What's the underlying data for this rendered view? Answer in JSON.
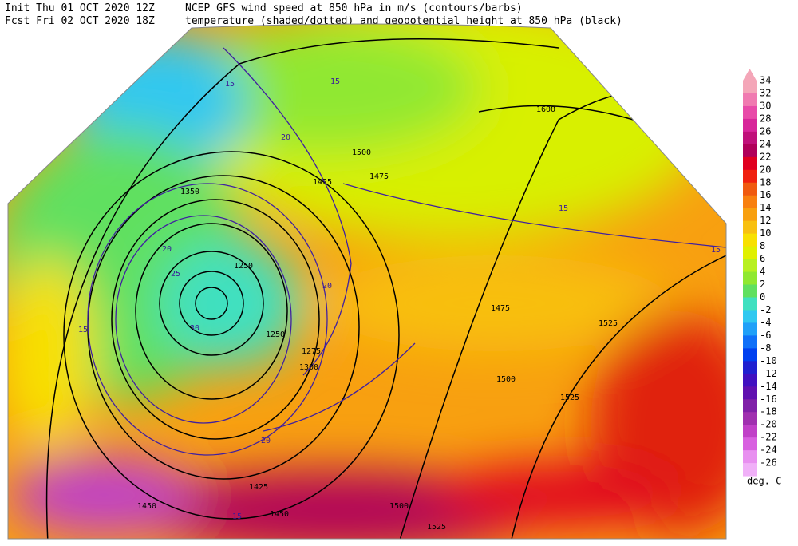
{
  "header": {
    "init": "Init  Thu 01 OCT 2020 12Z",
    "fcst": "Fcst Fri 02 OCT 2020 18Z",
    "line1": "NCEP GFS wind speed at 850 hPa in m/s (contours/barbs)",
    "line2": "temperature (shaded/dotted) and geopotential height at 850 hPa (black)"
  },
  "colorbar": {
    "unit": "deg. C",
    "values": [
      34,
      32,
      30,
      28,
      26,
      24,
      22,
      20,
      18,
      16,
      14,
      12,
      10,
      8,
      6,
      4,
      2,
      0,
      -2,
      -4,
      -6,
      -8,
      -10,
      -12,
      -14,
      -16,
      -18,
      -20,
      -22,
      -24,
      -26
    ],
    "colors": [
      "#f4a6b8",
      "#f07ab0",
      "#e84aa8",
      "#d8269a",
      "#c0107a",
      "#b0005a",
      "#e00020",
      "#f02010",
      "#f05a10",
      "#f88010",
      "#f8a010",
      "#f8c010",
      "#f8e000",
      "#e0f000",
      "#b8f020",
      "#90e830",
      "#60e060",
      "#40e0c0",
      "#30c8f0",
      "#20a0f8",
      "#1070f8",
      "#0040f0",
      "#2020d0",
      "#4010c0",
      "#6010b0",
      "#8020a8",
      "#a030b0",
      "#c040c8",
      "#d860e0",
      "#e890f0",
      "#f0b0f8"
    ]
  },
  "map": {
    "labels": [
      1600,
      1500,
      1475,
      1425,
      1350,
      1300,
      1250,
      1275,
      1525,
      1450,
      1500,
      1525,
      1475,
      1425,
      1450,
      1500,
      1525,
      1250,
      15,
      15,
      20,
      20,
      25,
      30,
      15,
      20,
      15,
      15,
      20,
      15
    ]
  }
}
